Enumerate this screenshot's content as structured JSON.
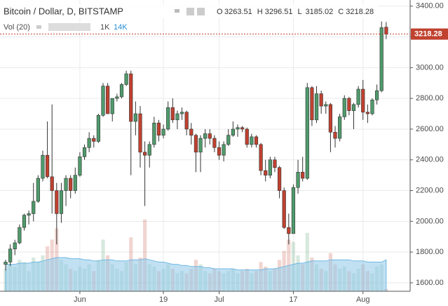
{
  "header": {
    "title": "Bitcoin / Dollar, D, BITSTAMP",
    "ohlc_labels": [
      "O",
      "H",
      "L",
      "C"
    ]
  },
  "volume_legend": {
    "name": "Vol (20)",
    "volume": "1K",
    "ma": "14K"
  },
  "chart_data": {
    "type": "candlestick",
    "categories": [
      null,
      null,
      null,
      null,
      null,
      null,
      null,
      null,
      null,
      null,
      null,
      null,
      null,
      null,
      null,
      null,
      "Jun",
      null,
      null,
      null,
      null,
      null,
      null,
      null,
      null,
      null,
      null,
      null,
      null,
      null,
      null,
      null,
      null,
      null,
      "19",
      null,
      null,
      null,
      null,
      null,
      null,
      null,
      null,
      null,
      null,
      null,
      "Jul",
      null,
      null,
      null,
      null,
      null,
      null,
      null,
      null,
      null,
      null,
      null,
      null,
      null,
      null,
      null,
      "17",
      null,
      null,
      null,
      null,
      null,
      null,
      null,
      null,
      null,
      null,
      null,
      null,
      null,
      null,
      "Aug",
      null,
      null,
      null,
      null,
      null
    ],
    "open": [
      1720,
      1735,
      1820,
      1860,
      1960,
      2040,
      2050,
      2130,
      2280,
      2430,
      2290,
      2200,
      2050,
      2200,
      2280,
      2200,
      2300,
      2420,
      2480,
      2540,
      2520,
      2690,
      2880,
      2700,
      2800,
      2810,
      2890,
      2960,
      2650,
      2700,
      2450,
      2430,
      2500,
      2640,
      2560,
      2600,
      2740,
      2660,
      2700,
      2710,
      2600,
      2560,
      2450,
      2540,
      2570,
      2540,
      2480,
      2430,
      2500,
      2560,
      2600,
      2610,
      2600,
      2500,
      2550,
      2500,
      2330,
      2300,
      2400,
      2350,
      2200,
      1960,
      1920,
      2220,
      2320,
      2280,
      2870,
      2660,
      2830,
      2750,
      2760,
      2580,
      2540,
      2680,
      2800,
      2720,
      2760,
      2860,
      2710,
      2700,
      2790,
      2850,
      3263.51
    ],
    "high": [
      1750,
      1850,
      1880,
      1980,
      2050,
      2070,
      2250,
      2300,
      2460,
      2650,
      2760,
      2250,
      2250,
      2300,
      2300,
      2350,
      2450,
      2500,
      2580,
      2560,
      2700,
      2900,
      2900,
      2800,
      2830,
      2900,
      2980,
      2980,
      2780,
      2750,
      2520,
      2520,
      2680,
      2660,
      2630,
      2780,
      2800,
      2720,
      2740,
      2720,
      2640,
      2570,
      2560,
      2600,
      2600,
      2560,
      2520,
      2520,
      2600,
      2650,
      2630,
      2620,
      2610,
      2570,
      2560,
      2510,
      2400,
      2420,
      2420,
      2360,
      2220,
      2050,
      2240,
      2400,
      2420,
      2900,
      2880,
      2880,
      2850,
      2780,
      2770,
      2620,
      2700,
      2820,
      2810,
      2770,
      2880,
      2920,
      2760,
      2800,
      2890,
      3300,
      3296.51
    ],
    "low": [
      1680,
      1710,
      1780,
      1850,
      1940,
      1980,
      2000,
      2120,
      2260,
      2280,
      2050,
      1850,
      1990,
      2100,
      2150,
      2180,
      2290,
      2400,
      2450,
      2480,
      2510,
      2680,
      2700,
      2650,
      2780,
      2800,
      2880,
      2300,
      2560,
      2350,
      2100,
      2350,
      2480,
      2520,
      2540,
      2590,
      2640,
      2600,
      2660,
      2560,
      2500,
      2320,
      2320,
      2480,
      2500,
      2450,
      2400,
      2390,
      2490,
      2550,
      2550,
      2580,
      2480,
      2480,
      2480,
      2300,
      2260,
      2280,
      2320,
      2150,
      1950,
      1850,
      1920,
      2180,
      2260,
      2270,
      2620,
      2640,
      2700,
      2700,
      2450,
      2480,
      2520,
      2660,
      2690,
      2600,
      2740,
      2660,
      2640,
      2690,
      2760,
      2840,
      3185.02
    ],
    "close": [
      1735,
      1820,
      1860,
      1960,
      2040,
      2050,
      2130,
      2280,
      2430,
      2290,
      2200,
      2050,
      2200,
      2280,
      2200,
      2300,
      2420,
      2480,
      2540,
      2520,
      2690,
      2880,
      2700,
      2800,
      2810,
      2890,
      2960,
      2650,
      2700,
      2450,
      2430,
      2500,
      2640,
      2560,
      2600,
      2740,
      2660,
      2700,
      2710,
      2600,
      2560,
      2450,
      2540,
      2570,
      2540,
      2480,
      2430,
      2500,
      2560,
      2600,
      2610,
      2600,
      2500,
      2550,
      2500,
      2330,
      2300,
      2400,
      2350,
      2200,
      1960,
      1920,
      2220,
      2320,
      2280,
      2870,
      2660,
      2830,
      2750,
      2760,
      2580,
      2540,
      2680,
      2800,
      2720,
      2760,
      2860,
      2710,
      2700,
      2790,
      2850,
      3260,
      3218.28
    ],
    "volume": [
      10,
      12,
      11,
      14,
      13,
      9,
      15,
      13,
      16,
      20,
      23,
      28,
      14,
      12,
      10,
      9,
      11,
      10,
      12,
      9,
      14,
      23,
      16,
      12,
      10,
      9,
      13,
      24,
      12,
      15,
      32,
      12,
      11,
      9,
      10,
      12,
      10,
      8,
      9,
      8,
      10,
      14,
      12,
      9,
      8,
      10,
      9,
      8,
      9,
      10,
      8,
      9,
      10,
      8,
      9,
      13,
      11,
      9,
      10,
      14,
      18,
      23,
      22,
      16,
      12,
      26,
      15,
      12,
      10,
      9,
      17,
      12,
      10,
      11,
      9,
      8,
      10,
      12,
      9,
      8,
      11,
      12,
      1
    ],
    "volume_ma": [
      12,
      12,
      12,
      12.5,
      12.5,
      12.5,
      13,
      13,
      13.5,
      14,
      14.5,
      15,
      15,
      15,
      14.5,
      14.5,
      14.5,
      14,
      14,
      13.5,
      13.5,
      14,
      14,
      14,
      13.5,
      13.5,
      13.5,
      14,
      14,
      14,
      14.5,
      14,
      13.5,
      13,
      13,
      12.5,
      12,
      12,
      11.5,
      11.5,
      11,
      11,
      11,
      10.5,
      10.5,
      10,
      10,
      10,
      10,
      10,
      9.5,
      9.5,
      9.5,
      9.5,
      9.5,
      9.5,
      10,
      10,
      10,
      10.5,
      11,
      11.5,
      12,
      12.5,
      12.5,
      13,
      13.5,
      13.5,
      13.5,
      13.5,
      14,
      14,
      14,
      14,
      14,
      13.5,
      13.5,
      13.5,
      13,
      13,
      13,
      13,
      14
    ],
    "volume_lim": [
      0,
      40
    ],
    "ylim": [
      1545,
      3440
    ],
    "yticks": [
      {
        "value": 1600,
        "label": "1600.00"
      },
      {
        "value": 1800,
        "label": "1800.00"
      },
      {
        "value": 2000,
        "label": "2000.00"
      },
      {
        "value": 2200,
        "label": "2200.00"
      },
      {
        "value": 2400,
        "label": "2400.00"
      },
      {
        "value": 2600,
        "label": "2600.00"
      },
      {
        "value": 2800,
        "label": "2800.00"
      },
      {
        "value": 3000,
        "label": "3000.00"
      },
      {
        "value": 3200,
        "label": "3200.00"
      },
      {
        "value": 3400,
        "label": "3400.00"
      }
    ],
    "up_color": "#4f9a6b",
    "down_color": "#c0412f",
    "volume_color": "#8ec8ea",
    "grid": true
  }
}
